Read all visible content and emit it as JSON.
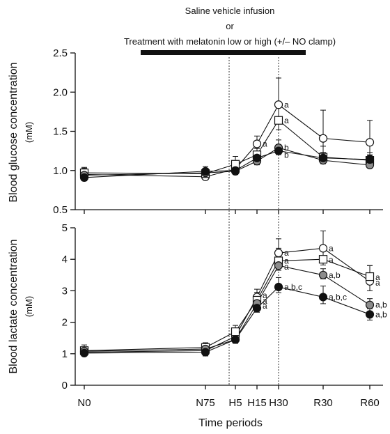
{
  "header": {
    "line1": "Saline vehicle infusion",
    "line2": "or",
    "line3": "Treatment with melatonin low or high (+/– NO clamp)"
  },
  "xlabel": "Time periods",
  "categories": [
    "N0",
    "N75",
    "H5",
    "H15",
    "H30",
    "R30",
    "R60"
  ],
  "colors": {
    "ink": "#111111",
    "grey_marker": "#8c8c8c",
    "white": "#ffffff"
  },
  "chart_data": [
    {
      "type": "line",
      "panel": "glucose",
      "title": "",
      "xlabel": "Time periods",
      "ylabel": "Blood glucose concentration",
      "unit": "(mМ)",
      "ylim": [
        0.5,
        2.5
      ],
      "yticks": [
        "0.5",
        "1.0",
        "1.5",
        "2.0",
        "2.5"
      ],
      "categories": [
        "N0",
        "N75",
        "H5",
        "H15",
        "H30",
        "R30",
        "R60"
      ],
      "series": [
        {
          "marker": "open-circle",
          "values": [
            0.95,
            0.92,
            1.02,
            1.34,
            1.84,
            1.41,
            1.36
          ],
          "errors": [
            0.08,
            0.06,
            0.08,
            0.1,
            0.34,
            0.36,
            0.28
          ]
        },
        {
          "marker": "open-square",
          "values": [
            0.97,
            0.96,
            1.08,
            1.2,
            1.64,
            1.17,
            1.13
          ],
          "errors": [
            0.07,
            0.05,
            0.1,
            0.1,
            0.2,
            0.14,
            0.1
          ]
        },
        {
          "marker": "grey-circle",
          "values": [
            0.94,
            0.97,
            0.99,
            1.12,
            1.29,
            1.13,
            1.07
          ],
          "errors": [
            0.06,
            0.05,
            0.07,
            0.08,
            0.1,
            0.07,
            0.06
          ]
        },
        {
          "marker": "filled-circle",
          "values": [
            0.91,
            0.99,
            1.0,
            1.16,
            1.25,
            1.16,
            1.14
          ],
          "errors": [
            0.07,
            0.06,
            0.08,
            0.08,
            0.08,
            0.07,
            0.06
          ]
        }
      ],
      "annotations": [
        {
          "text": "a",
          "x": "H15",
          "y": 1.34
        },
        {
          "text": "a",
          "x": "H30",
          "y": 1.84
        },
        {
          "text": "a",
          "x": "H30",
          "y": 1.64
        },
        {
          "text": "b",
          "x": "H30",
          "y": 1.29
        },
        {
          "text": "b",
          "x": "H30",
          "y": 1.2
        }
      ]
    },
    {
      "type": "line",
      "panel": "lactate",
      "title": "",
      "xlabel": "Time periods",
      "ylabel": "Blood lactate concentration",
      "unit": "(mМ)",
      "ylim": [
        0,
        5
      ],
      "yticks": [
        "0",
        "1",
        "2",
        "3",
        "4",
        "5"
      ],
      "categories": [
        "N0",
        "N75",
        "H5",
        "H15",
        "H30",
        "R30",
        "R60"
      ],
      "series": [
        {
          "marker": "open-circle",
          "values": [
            1.05,
            1.1,
            1.55,
            2.8,
            4.2,
            4.35,
            3.3
          ],
          "errors": [
            0.15,
            0.15,
            0.22,
            0.25,
            0.45,
            0.55,
            0.5
          ]
        },
        {
          "marker": "open-square",
          "values": [
            1.1,
            1.2,
            1.7,
            2.7,
            3.95,
            4.0,
            3.45
          ],
          "errors": [
            0.18,
            0.15,
            0.2,
            0.25,
            0.4,
            0.3,
            0.35
          ]
        },
        {
          "marker": "grey-circle",
          "values": [
            1.08,
            1.15,
            1.45,
            2.6,
            3.8,
            3.5,
            2.55
          ],
          "errors": [
            0.12,
            0.12,
            0.2,
            0.2,
            0.25,
            0.2,
            0.2
          ]
        },
        {
          "marker": "filled-circle",
          "values": [
            1.02,
            1.05,
            1.45,
            2.45,
            3.12,
            2.8,
            2.25
          ],
          "errors": [
            0.12,
            0.2,
            0.18,
            0.22,
            0.3,
            0.35,
            0.3
          ]
        }
      ],
      "annotations": [
        {
          "text": "a",
          "x": "H15",
          "y": 2.85
        },
        {
          "text": "a",
          "x": "H15",
          "y": 2.68
        },
        {
          "text": "a",
          "x": "H15",
          "y": 2.52
        },
        {
          "text": "a",
          "x": "H30",
          "y": 4.2
        },
        {
          "text": "a",
          "x": "H30",
          "y": 3.95
        },
        {
          "text": "a",
          "x": "H30",
          "y": 3.76
        },
        {
          "text": "a,b,c",
          "x": "H30",
          "y": 3.12
        },
        {
          "text": "a",
          "x": "R30",
          "y": 4.35
        },
        {
          "text": "a",
          "x": "R30",
          "y": 3.98
        },
        {
          "text": "a,b",
          "x": "R30",
          "y": 3.5
        },
        {
          "text": "a,b,c",
          "x": "R30",
          "y": 2.8
        },
        {
          "text": "a",
          "x": "R60",
          "y": 3.43
        },
        {
          "text": "a",
          "x": "R60",
          "y": 3.25
        },
        {
          "text": "a,b",
          "x": "R60",
          "y": 2.55
        },
        {
          "text": "a,b",
          "x": "R60",
          "y": 2.25
        }
      ]
    }
  ]
}
